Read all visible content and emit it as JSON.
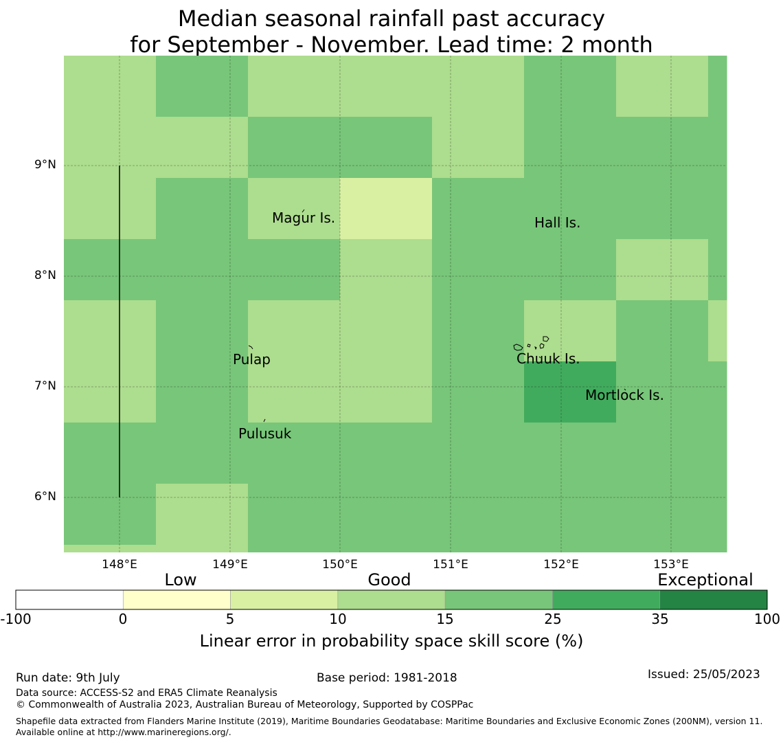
{
  "title": {
    "line1": "Median seasonal rainfall past accuracy",
    "line2": "for September - November. Lead time: 2 month"
  },
  "map": {
    "lat_ticks": [
      "9°N",
      "8°N",
      "7°N",
      "6°N"
    ],
    "lon_ticks": [
      "148°E",
      "149°E",
      "150°E",
      "151°E",
      "152°E",
      "153°E"
    ],
    "places": [
      "Magur Is.",
      "Hall Is.",
      "Pulap",
      "Chuuk Is.",
      "Mortlock Is.",
      "Pulusuk"
    ],
    "grid_levels": [
      [
        3,
        4,
        3,
        3,
        3,
        4,
        3,
        4
      ],
      [
        3,
        3,
        4,
        4,
        3,
        4,
        4,
        4
      ],
      [
        3,
        4,
        3,
        2,
        4,
        4,
        4,
        4
      ],
      [
        4,
        4,
        4,
        3,
        4,
        4,
        3,
        4
      ],
      [
        3,
        4,
        3,
        3,
        4,
        3,
        4,
        3
      ],
      [
        3,
        4,
        3,
        3,
        4,
        5,
        4,
        4
      ],
      [
        4,
        4,
        4,
        4,
        4,
        4,
        4,
        4
      ],
      [
        4,
        3,
        4,
        4,
        4,
        4,
        4,
        4
      ]
    ],
    "bottom_strip_levels": [
      3,
      3,
      4,
      4,
      4,
      4,
      4,
      4
    ]
  },
  "colorbar": {
    "categories": [
      "Low",
      "Good",
      "Exceptional"
    ],
    "ticks": [
      "-100",
      "0",
      "5",
      "10",
      "15",
      "25",
      "35",
      "100"
    ],
    "colors": [
      "#ffffff",
      "#ffffcc",
      "#d9f0a3",
      "#addd8e",
      "#78c679",
      "#41ab5d",
      "#238443"
    ],
    "label": "Linear error in probability space skill score (%)"
  },
  "footer": {
    "run_date": "Run date: 9th July",
    "base_period": "Base period: 1981-2018",
    "issued": "Issued: 25/05/2023",
    "data_source": "Data source: ACCESS-S2 and ERA5 Climate Reanalysis",
    "copyright": "© Commonwealth of Australia 2023, Australian Bureau of Meteorology, Supported by COSPPac",
    "shapefile": "Shapefile data extracted from Flanders Marine Institute (2019), Maritime Boundaries Geodatabase: Maritime Boundaries and Exclusive Economic Zones (200NM), version 11. Available online at http://www.marineregions.org/."
  }
}
